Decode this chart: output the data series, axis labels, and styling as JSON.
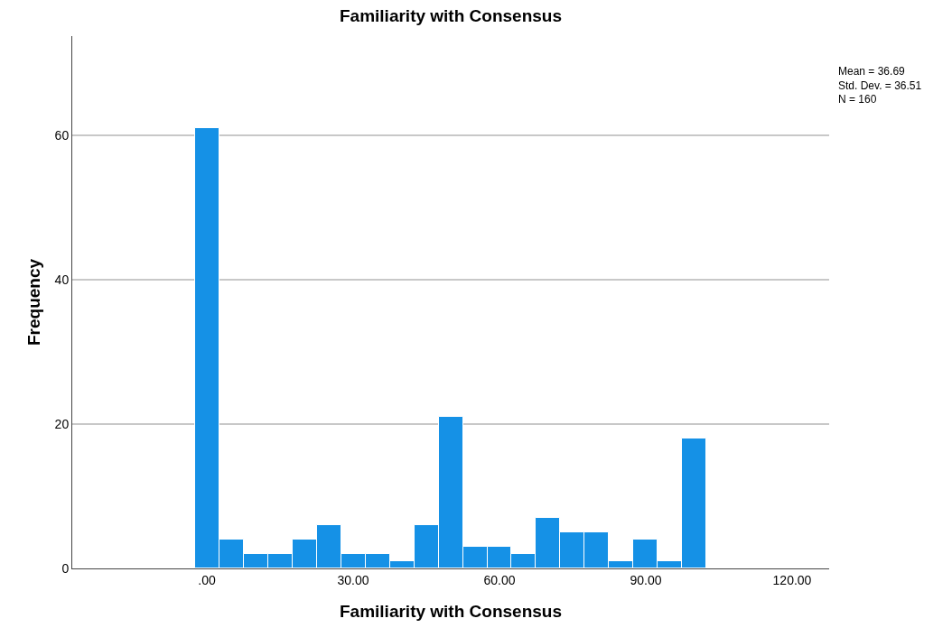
{
  "chart_data": {
    "type": "histogram",
    "title": "Familiarity with Consensus",
    "xlabel": "Familiarity with Consensus",
    "ylabel": "Frequency",
    "bins": [
      -2.5,
      2.5,
      7.5,
      12.5,
      17.5,
      22.5,
      27.5,
      32.5,
      37.5,
      42.5,
      47.5,
      52.5,
      57.5,
      62.5,
      67.5,
      72.5,
      77.5,
      82.5,
      87.5,
      92.5,
      97.5,
      102.5
    ],
    "values": [
      61,
      4,
      2,
      2,
      4,
      6,
      2,
      2,
      1,
      6,
      21,
      3,
      3,
      2,
      7,
      5,
      5,
      1,
      4,
      1,
      18
    ],
    "color": "#1591e6",
    "xlim": [
      -27.6,
      127.6
    ],
    "xticks": [
      {
        "value": 0,
        "label": ".00"
      },
      {
        "value": 30,
        "label": "30.00"
      },
      {
        "value": 60,
        "label": "60.00"
      },
      {
        "value": 90,
        "label": "90.00"
      },
      {
        "value": 120,
        "label": "120.00"
      }
    ],
    "ylim": [
      0,
      73.75
    ],
    "yticks": [
      0,
      20,
      40,
      60
    ],
    "grid": "y",
    "annotations": [
      "Mean = 36.69\nStd. Dev. = 36.51\nN = 160"
    ]
  }
}
